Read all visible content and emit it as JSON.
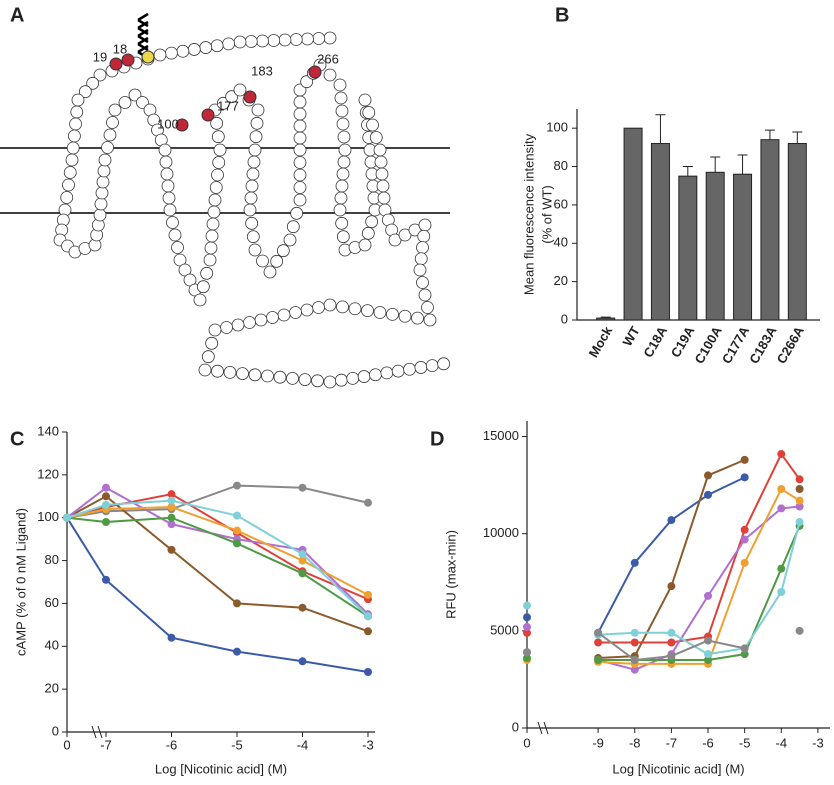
{
  "diagram": {
    "panel": "A",
    "labels": [
      "19",
      "18",
      "183",
      "177",
      "100",
      "266"
    ]
  },
  "chart_data": [
    {
      "type": "bar",
      "panel": "B",
      "y_label": [
        "Mean fluorescence intensity",
        "(% of WT)"
      ],
      "categories": [
        "Mock",
        "WT",
        "C18A",
        "C19A",
        "C100A",
        "C177A",
        "C183A",
        "C266A"
      ],
      "values": [
        1,
        100,
        92,
        75,
        77,
        76,
        94,
        92
      ],
      "errors": [
        0.5,
        0,
        15,
        5,
        8,
        10,
        5,
        6
      ],
      "color": "#666666",
      "ylim": [
        0,
        110
      ],
      "yticks": [
        0,
        20,
        40,
        60,
        80,
        100
      ]
    },
    {
      "type": "line",
      "panel": "C",
      "y_label": "cAMP (% of 0 nM Ligand)",
      "x_label": "Log [Nicotinic acid] (M)",
      "categories": [
        "0",
        "-7",
        "-6",
        "-5",
        "-4",
        "-3"
      ],
      "ylim": [
        0,
        140
      ],
      "yticks": [
        0,
        20,
        40,
        60,
        80,
        100,
        120,
        140
      ],
      "series": [
        {
          "color": "#3b5ba8",
          "values": [
            100,
            71,
            44,
            37.5,
            33,
            28
          ]
        },
        {
          "color": "#888888",
          "values": [
            100,
            103,
            104,
            115,
            114,
            107
          ]
        },
        {
          "color": "#e0403a",
          "values": [
            100,
            105,
            111,
            93,
            75,
            62
          ]
        },
        {
          "color": "#8b5a2b",
          "values": [
            100,
            110,
            85,
            60,
            58,
            47
          ]
        },
        {
          "color": "#b070d0",
          "values": [
            100,
            114,
            97,
            90,
            85,
            55
          ]
        },
        {
          "color": "#4f9a45",
          "values": [
            100,
            98,
            100,
            88,
            74,
            54
          ]
        },
        {
          "color": "#f0a030",
          "values": [
            100,
            104,
            105,
            94,
            80,
            64
          ]
        },
        {
          "color": "#7fd0d8",
          "values": [
            100,
            106,
            108,
            101,
            83,
            54
          ]
        }
      ]
    },
    {
      "type": "line",
      "panel": "D",
      "y_label": "RFU (max-min)",
      "x_label": "Log [Nicotinic acid] (M)",
      "x": [
        0,
        -9,
        -8,
        -7,
        -6,
        -5,
        -4,
        -3.5
      ],
      "xlim": [
        -10.45,
        -2.67
      ],
      "xticks": [
        0,
        -9,
        -8,
        -7,
        -6,
        -5,
        -4,
        -3
      ],
      "ylim": [
        0,
        15800
      ],
      "yticks": [
        0,
        5000,
        10000,
        15000
      ],
      "series": [
        {
          "color": "#3b5ba8",
          "values": [
            5700,
            4900,
            8500,
            10700,
            12000,
            12900,
            null,
            null
          ]
        },
        {
          "color": "#8b5a2b",
          "values": [
            3900,
            3600,
            3700,
            7300,
            13000,
            13800,
            null,
            12300
          ]
        },
        {
          "color": "#e0403a",
          "values": [
            4900,
            4400,
            4400,
            4400,
            4700,
            10200,
            14100,
            12800
          ]
        },
        {
          "color": "#b070d0",
          "values": [
            5200,
            3500,
            3000,
            3800,
            6800,
            9700,
            11300,
            11400
          ]
        },
        {
          "color": "#f0a030",
          "values": [
            3500,
            3400,
            3300,
            3300,
            3300,
            8500,
            12300,
            11700
          ]
        },
        {
          "color": "#4f9a45",
          "values": [
            3600,
            3500,
            3500,
            3500,
            3500,
            3800,
            8200,
            10400
          ]
        },
        {
          "color": "#7fd0d8",
          "values": [
            6300,
            4800,
            4900,
            4900,
            3800,
            4100,
            7000,
            10600
          ]
        },
        {
          "color": "#888888",
          "values": [
            3900,
            4900,
            3500,
            3700,
            4500,
            4100,
            null,
            5000
          ]
        }
      ]
    }
  ]
}
